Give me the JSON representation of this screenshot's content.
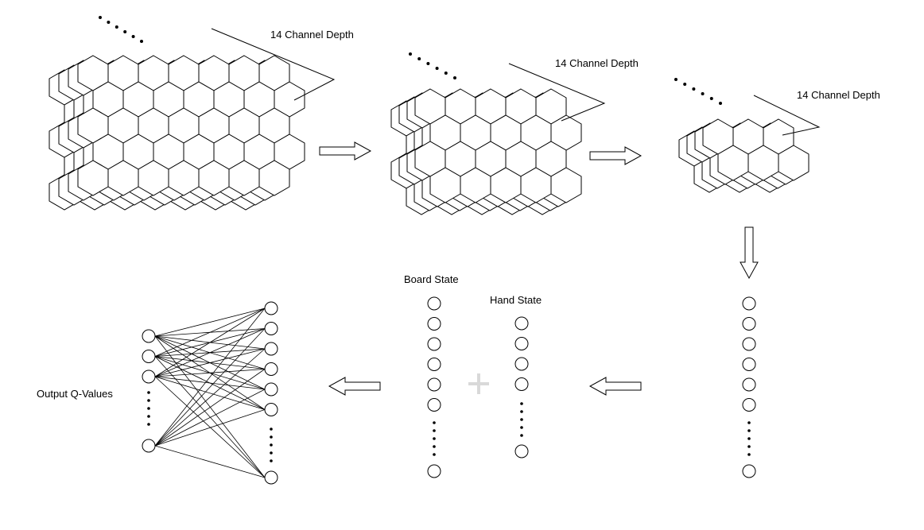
{
  "diagram": {
    "description_labels": {
      "stack1_depth": "14 Channel Depth",
      "stack2_depth": "14 Channel Depth",
      "stack3_depth": "14 Channel Depth",
      "board_state": "Board State",
      "hand_state": "Hand State",
      "output": "Output Q-Values"
    },
    "grids": [
      {
        "name": "conv-input-grid",
        "rows": 5,
        "cols": 7,
        "layers": 4
      },
      {
        "name": "conv-middle-grid",
        "rows": 4,
        "cols": 5,
        "layers": 4
      },
      {
        "name": "conv-small-grid",
        "rows": 2,
        "cols": 3,
        "layers": 4
      }
    ],
    "vectors": {
      "flatten_nodes_shown": 6,
      "board_state_nodes_shown": 6,
      "hand_state_nodes_shown": 4,
      "dense_input_nodes_shown": 3,
      "dense_output_nodes_shown": 6
    },
    "colors": {
      "line": "#000000",
      "background": "#ffffff",
      "plus_sign": "#d9d9d9"
    }
  }
}
